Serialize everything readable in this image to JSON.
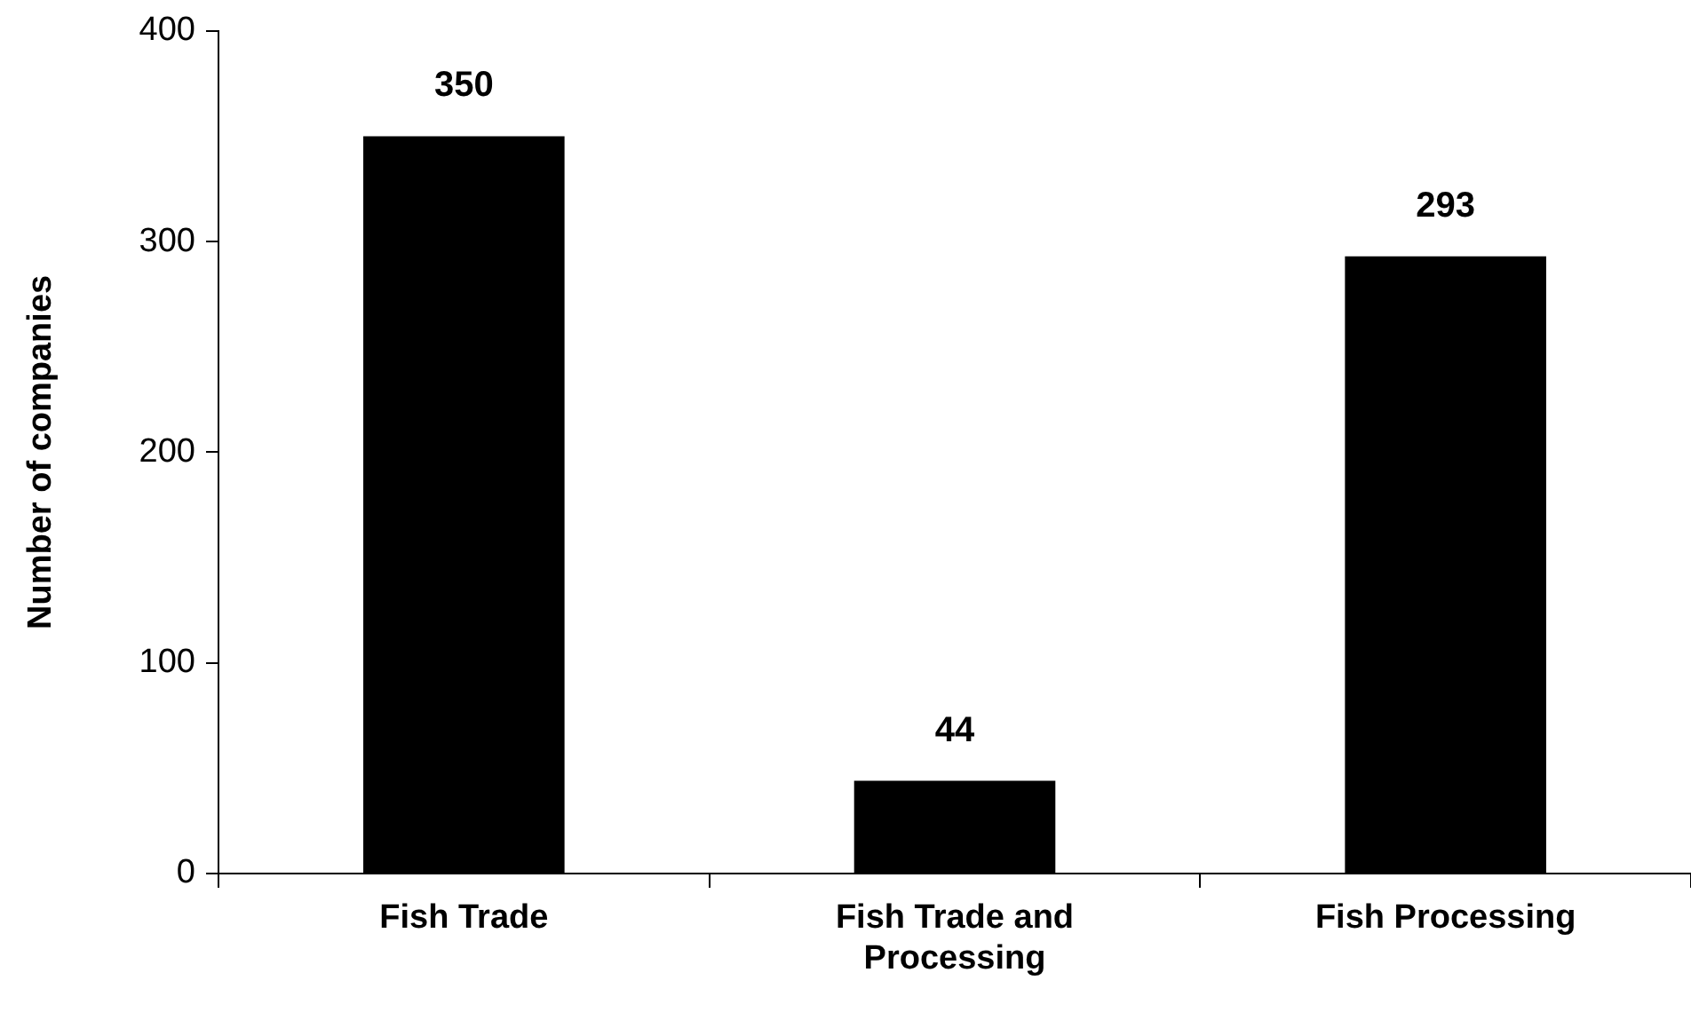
{
  "chart_data": {
    "type": "bar",
    "ylabel": "Number of companies",
    "categories": [
      "Fish Trade",
      "Fish Trade and Processing",
      "Fish Processing"
    ],
    "values": [
      350,
      44,
      293
    ],
    "color": "#000000",
    "ylim": [
      0,
      400
    ],
    "yticks": [
      0,
      100,
      200,
      300,
      400
    ],
    "grid": false,
    "legend": false,
    "data_labels": true
  }
}
